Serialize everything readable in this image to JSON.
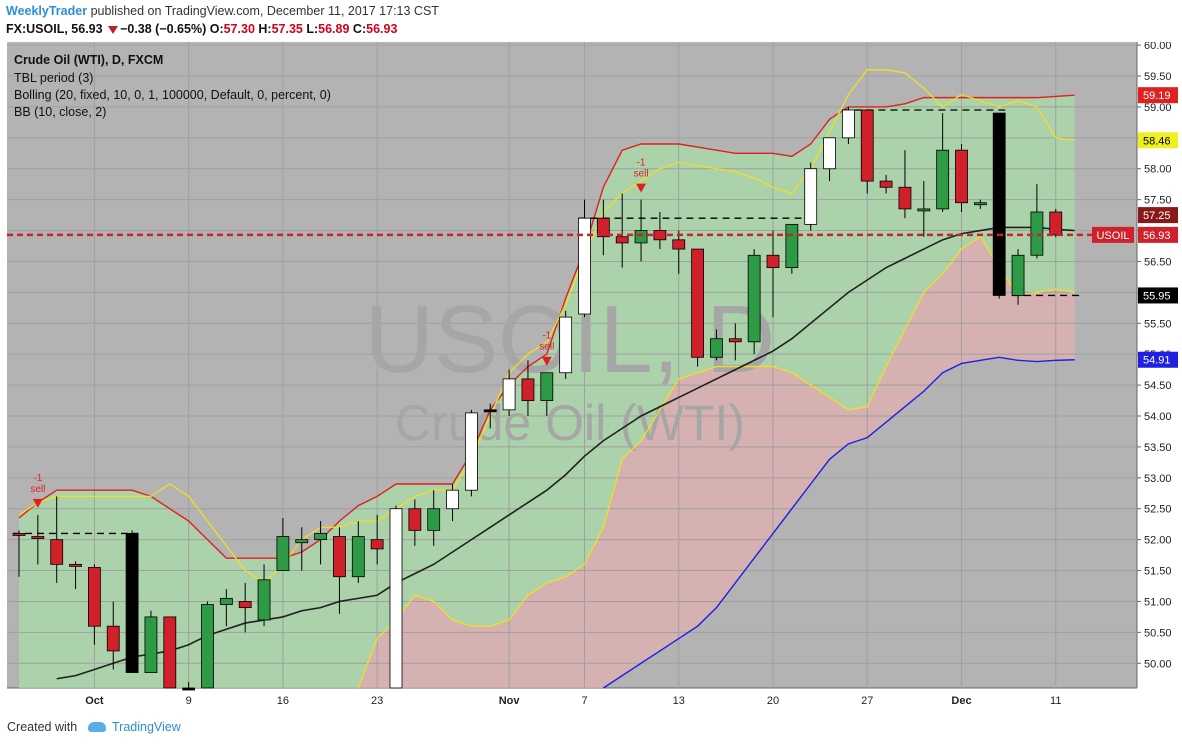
{
  "header": {
    "author": "WeeklyTrader",
    "published_text": "published on TradingView.com, December 11, 2017 17:13 CST",
    "symbol": "FX:USOIL,",
    "last": "56.93",
    "change": "−0.38 (−0.65%)",
    "open_label": "O:",
    "open": "57.30",
    "high_label": "H:",
    "high": "57.35",
    "low_label": "L:",
    "low": "56.89",
    "close_label": "C:",
    "close": "56.93"
  },
  "legend": {
    "line1": "Crude Oil (WTI), D, FXCM",
    "line2": "TBL period (3)",
    "line3": "Bolling (20, fixed, 10, 0, 1, 100000, Default, 0, percent, 0)",
    "line4": "BB (10, close, 2)"
  },
  "watermark": {
    "big": "USOIL, D",
    "small": "Crude Oil (WTI)"
  },
  "footer": {
    "created": "Created with",
    "brand": "TradingView"
  },
  "colors": {
    "background": "#b2b2b2",
    "green_body": "#2e9a46",
    "red_body": "#d0202a",
    "white_body": "#ffffff",
    "black_body": "#000000",
    "upper_band": "#e02020",
    "yellow_band": "#f0e020",
    "blue_band": "#2020e0",
    "mid_line": "#202020",
    "green_fill": "#a8dca8",
    "pink_fill": "#e0b0b0",
    "last_price": "#d0202a"
  },
  "chart_data": {
    "type": "candlestick",
    "y_range": [
      49.6,
      60.05
    ],
    "y_ticks": [
      "50.00",
      "50.50",
      "51.00",
      "51.50",
      "52.00",
      "52.50",
      "53.00",
      "53.50",
      "54.00",
      "54.50",
      "55.00",
      "55.50",
      "56.00",
      "56.50",
      "57.00",
      "57.50",
      "58.00",
      "58.50",
      "59.00",
      "59.50",
      "60.00"
    ],
    "x_labels": [
      {
        "label": "Oct",
        "i": 4
      },
      {
        "label": "9",
        "i": 9
      },
      {
        "label": "16",
        "i": 14
      },
      {
        "label": "23",
        "i": 19
      },
      {
        "label": "Nov",
        "i": 26
      },
      {
        "label": "7",
        "i": 30
      },
      {
        "label": "13",
        "i": 35
      },
      {
        "label": "20",
        "i": 40
      },
      {
        "label": "27",
        "i": 45
      },
      {
        "label": "Dec",
        "i": 50
      },
      {
        "label": "11",
        "i": 55
      }
    ],
    "candles": [
      {
        "o": 52.1,
        "h": 52.15,
        "l": 51.4,
        "c": 52.07,
        "col": "red"
      },
      {
        "o": 52.05,
        "h": 52.4,
        "l": 51.6,
        "c": 52.02,
        "col": "red"
      },
      {
        "o": 52.0,
        "h": 52.7,
        "l": 51.3,
        "c": 51.6,
        "col": "red"
      },
      {
        "o": 51.6,
        "h": 51.65,
        "l": 51.2,
        "c": 51.58,
        "col": "red"
      },
      {
        "o": 51.55,
        "h": 51.6,
        "l": 50.3,
        "c": 50.6,
        "col": "red"
      },
      {
        "o": 50.6,
        "h": 51.0,
        "l": 49.9,
        "c": 50.2,
        "col": "red"
      },
      {
        "o": 52.1,
        "h": 52.15,
        "l": 49.85,
        "c": 49.85,
        "col": "black"
      },
      {
        "o": 49.85,
        "h": 50.85,
        "l": 49.85,
        "c": 50.75,
        "col": "green"
      },
      {
        "o": 50.75,
        "h": 50.75,
        "l": 49.5,
        "c": 49.6,
        "col": "red"
      },
      {
        "o": 49.6,
        "h": 49.7,
        "l": 49.5,
        "c": 49.6,
        "col": "black"
      },
      {
        "o": 49.6,
        "h": 51.0,
        "l": 49.5,
        "c": 50.95,
        "col": "green"
      },
      {
        "o": 50.95,
        "h": 51.2,
        "l": 50.6,
        "c": 51.05,
        "col": "green"
      },
      {
        "o": 51.0,
        "h": 51.3,
        "l": 50.5,
        "c": 50.9,
        "col": "red"
      },
      {
        "o": 50.7,
        "h": 51.6,
        "l": 50.6,
        "c": 51.35,
        "col": "green"
      },
      {
        "o": 51.5,
        "h": 52.35,
        "l": 51.5,
        "c": 52.05,
        "col": "green"
      },
      {
        "o": 51.95,
        "h": 52.2,
        "l": 51.5,
        "c": 52.0,
        "col": "green"
      },
      {
        "o": 52.0,
        "h": 52.3,
        "l": 51.6,
        "c": 52.1,
        "col": "green"
      },
      {
        "o": 52.05,
        "h": 52.2,
        "l": 50.8,
        "c": 51.4,
        "col": "red"
      },
      {
        "o": 51.4,
        "h": 52.3,
        "l": 51.3,
        "c": 52.05,
        "col": "green"
      },
      {
        "o": 52.0,
        "h": 52.4,
        "l": 51.6,
        "c": 51.85,
        "col": "red"
      },
      {
        "o": 49.6,
        "h": 52.55,
        "l": 49.6,
        "c": 52.5,
        "col": "white"
      },
      {
        "o": 52.5,
        "h": 52.65,
        "l": 51.9,
        "c": 52.15,
        "col": "red"
      },
      {
        "o": 52.15,
        "h": 52.8,
        "l": 51.9,
        "c": 52.5,
        "col": "green"
      },
      {
        "o": 52.5,
        "h": 52.9,
        "l": 52.3,
        "c": 52.8,
        "col": "white"
      },
      {
        "o": 52.8,
        "h": 54.1,
        "l": 52.7,
        "c": 54.05,
        "col": "white"
      },
      {
        "o": 54.1,
        "h": 54.2,
        "l": 53.8,
        "c": 54.1,
        "col": "black"
      },
      {
        "o": 54.1,
        "h": 54.75,
        "l": 54.0,
        "c": 54.6,
        "col": "white"
      },
      {
        "o": 54.6,
        "h": 54.9,
        "l": 54.0,
        "c": 54.25,
        "col": "red"
      },
      {
        "o": 54.25,
        "h": 54.7,
        "l": 54.0,
        "c": 54.7,
        "col": "green"
      },
      {
        "o": 54.7,
        "h": 55.7,
        "l": 54.6,
        "c": 55.6,
        "col": "white"
      },
      {
        "o": 55.65,
        "h": 57.5,
        "l": 55.6,
        "c": 57.2,
        "col": "white"
      },
      {
        "o": 57.2,
        "h": 57.5,
        "l": 56.6,
        "c": 56.9,
        "col": "red"
      },
      {
        "o": 56.9,
        "h": 57.6,
        "l": 56.4,
        "c": 56.8,
        "col": "red"
      },
      {
        "o": 56.8,
        "h": 57.5,
        "l": 56.5,
        "c": 57.0,
        "col": "green"
      },
      {
        "o": 57.0,
        "h": 57.3,
        "l": 56.7,
        "c": 56.85,
        "col": "red"
      },
      {
        "o": 56.85,
        "h": 57.0,
        "l": 56.3,
        "c": 56.7,
        "col": "red"
      },
      {
        "o": 56.7,
        "h": 56.7,
        "l": 54.8,
        "c": 54.95,
        "col": "red"
      },
      {
        "o": 54.95,
        "h": 55.4,
        "l": 54.9,
        "c": 55.25,
        "col": "green"
      },
      {
        "o": 55.25,
        "h": 55.5,
        "l": 54.9,
        "c": 55.2,
        "col": "red"
      },
      {
        "o": 55.2,
        "h": 56.7,
        "l": 55.0,
        "c": 56.6,
        "col": "green"
      },
      {
        "o": 56.6,
        "h": 57.0,
        "l": 55.6,
        "c": 56.4,
        "col": "red"
      },
      {
        "o": 56.4,
        "h": 57.1,
        "l": 56.3,
        "c": 57.1,
        "col": "green"
      },
      {
        "o": 57.1,
        "h": 58.1,
        "l": 57.0,
        "c": 58.0,
        "col": "white"
      },
      {
        "o": 58.0,
        "h": 58.5,
        "l": 57.8,
        "c": 58.5,
        "col": "white"
      },
      {
        "o": 58.5,
        "h": 59.0,
        "l": 58.4,
        "c": 58.95,
        "col": "white"
      },
      {
        "o": 58.95,
        "h": 58.95,
        "l": 57.6,
        "c": 57.8,
        "col": "red"
      },
      {
        "o": 57.8,
        "h": 57.9,
        "l": 57.6,
        "c": 57.7,
        "col": "red"
      },
      {
        "o": 57.7,
        "h": 58.3,
        "l": 57.2,
        "c": 57.35,
        "col": "red"
      },
      {
        "o": 57.35,
        "h": 57.8,
        "l": 56.9,
        "c": 57.35,
        "col": "green"
      },
      {
        "o": 57.35,
        "h": 58.9,
        "l": 57.3,
        "c": 58.3,
        "col": "green"
      },
      {
        "o": 58.3,
        "h": 58.4,
        "l": 57.3,
        "c": 57.45,
        "col": "red"
      },
      {
        "o": 57.45,
        "h": 57.5,
        "l": 57.35,
        "c": 57.45,
        "col": "green"
      },
      {
        "o": 58.9,
        "h": 58.9,
        "l": 55.9,
        "c": 55.95,
        "col": "black"
      },
      {
        "o": 55.95,
        "h": 56.7,
        "l": 55.8,
        "c": 56.6,
        "col": "green"
      },
      {
        "o": 56.6,
        "h": 57.75,
        "l": 56.55,
        "c": 57.3,
        "col": "green"
      },
      {
        "o": 57.3,
        "h": 57.35,
        "l": 56.89,
        "c": 56.93,
        "col": "red"
      }
    ],
    "upper_band": [
      52.35,
      52.6,
      52.8,
      52.8,
      52.8,
      52.8,
      52.8,
      52.7,
      52.5,
      52.3,
      52.0,
      51.7,
      51.7,
      51.7,
      51.7,
      51.8,
      52.0,
      52.3,
      52.55,
      52.7,
      52.9,
      52.9,
      52.9,
      52.9,
      53.4,
      54.1,
      54.5,
      54.8,
      55.0,
      55.9,
      56.7,
      57.7,
      58.3,
      58.4,
      58.4,
      58.4,
      58.35,
      58.3,
      58.25,
      58.25,
      58.25,
      58.2,
      58.4,
      58.8,
      59.0,
      59.0,
      59.0,
      59.05,
      59.15,
      59.15,
      59.15,
      59.15,
      59.15,
      59.15,
      59.15,
      59.17,
      59.19
    ],
    "yellow_upper": [
      52.4,
      52.6,
      52.7,
      52.7,
      52.7,
      52.7,
      52.7,
      52.7,
      52.9,
      52.7,
      52.3,
      51.9,
      51.5,
      51.3,
      51.6,
      52.0,
      52.2,
      52.2,
      52.3,
      52.3,
      52.5,
      52.7,
      52.8,
      52.8,
      53.3,
      54.0,
      54.7,
      55.0,
      55.2,
      55.8,
      56.6,
      57.3,
      57.6,
      57.8,
      58.0,
      58.1,
      58.05,
      58.0,
      57.95,
      57.85,
      57.7,
      57.6,
      58.0,
      58.6,
      59.2,
      59.6,
      59.6,
      59.55,
      59.3,
      59.0,
      59.2,
      59.1,
      59.0,
      59.1,
      59.0,
      58.5,
      58.46
    ],
    "yellow_lower": [
      null,
      null,
      null,
      null,
      null,
      null,
      null,
      null,
      null,
      null,
      null,
      null,
      null,
      null,
      null,
      null,
      null,
      null,
      49.6,
      50.4,
      50.7,
      51.1,
      51.0,
      50.7,
      50.6,
      50.6,
      50.7,
      51.1,
      51.3,
      51.4,
      51.6,
      52.2,
      53.3,
      53.6,
      54.1,
      54.6,
      54.7,
      54.8,
      54.8,
      54.8,
      54.8,
      54.7,
      54.5,
      54.3,
      54.1,
      54.15,
      54.8,
      55.4,
      56.0,
      56.3,
      56.7,
      56.9,
      56.4,
      55.95,
      56.0,
      56.05,
      56.0
    ],
    "mid_line": [
      null,
      null,
      49.75,
      49.8,
      49.9,
      50.0,
      50.1,
      50.15,
      50.2,
      50.3,
      50.45,
      50.55,
      50.65,
      50.7,
      50.75,
      50.85,
      50.9,
      51.0,
      51.05,
      51.1,
      51.3,
      51.45,
      51.6,
      51.8,
      52.0,
      52.2,
      52.4,
      52.6,
      52.8,
      53.05,
      53.35,
      53.6,
      53.8,
      54.0,
      54.15,
      54.3,
      54.45,
      54.6,
      54.75,
      54.9,
      55.05,
      55.25,
      55.5,
      55.75,
      56.0,
      56.2,
      56.4,
      56.55,
      56.7,
      56.85,
      56.95,
      57.0,
      57.05,
      57.05,
      57.05,
      57.02,
      57.0
    ],
    "blue_band": [
      null,
      null,
      null,
      null,
      null,
      null,
      null,
      null,
      null,
      null,
      null,
      null,
      null,
      null,
      null,
      null,
      null,
      null,
      null,
      null,
      null,
      null,
      null,
      null,
      null,
      null,
      null,
      null,
      null,
      null,
      null,
      49.6,
      49.8,
      50.0,
      50.2,
      50.4,
      50.6,
      50.9,
      51.3,
      51.7,
      52.1,
      52.5,
      52.9,
      53.3,
      53.55,
      53.65,
      53.9,
      54.15,
      54.4,
      54.7,
      54.85,
      54.9,
      54.95,
      54.9,
      54.88,
      54.9,
      54.91
    ],
    "sell_signals": [
      {
        "i": 1,
        "label": "sell",
        "num": "-1"
      },
      {
        "i": 28,
        "label": "sell",
        "num": "-1"
      },
      {
        "i": 33,
        "label": "sell",
        "num": "-1"
      }
    ],
    "flat_levels": [
      {
        "from": 0,
        "to": 6,
        "y": 52.1
      },
      {
        "from": 30,
        "to": 42,
        "y": 57.2
      },
      {
        "from": 44,
        "to": 52,
        "y": 58.95
      },
      {
        "from": 53,
        "to": 56,
        "y": 55.95
      }
    ],
    "last_price": 56.93,
    "last_label": "USOIL",
    "price_tags": [
      {
        "v": 59.19,
        "label": "59.19",
        "bg": "#e02020",
        "fg": "#ffffff"
      },
      {
        "v": 58.46,
        "label": "58.46",
        "bg": "#f0f020",
        "fg": "#000000"
      },
      {
        "v": 57.25,
        "label": "57.25",
        "bg": "#8a1818",
        "fg": "#ffffff"
      },
      {
        "v": 56.93,
        "label": "56.93",
        "bg": "#d0202a",
        "fg": "#ffffff"
      },
      {
        "v": 55.95,
        "label": "55.95",
        "bg": "#000000",
        "fg": "#ffffff"
      },
      {
        "v": 54.91,
        "label": "54.91",
        "bg": "#2020e0",
        "fg": "#ffffff"
      }
    ]
  }
}
